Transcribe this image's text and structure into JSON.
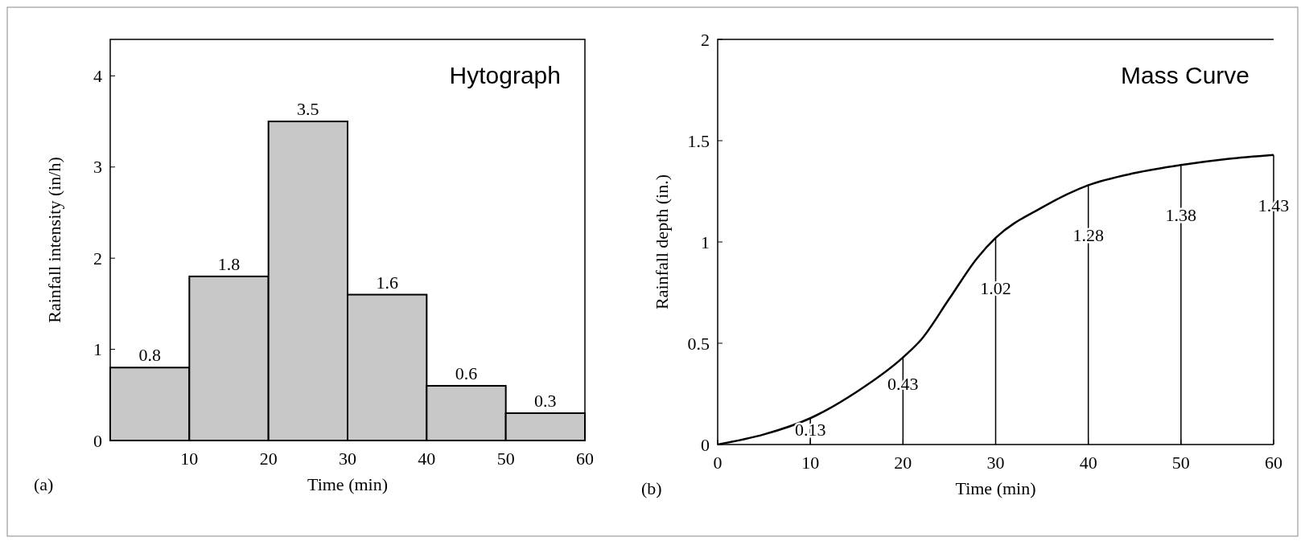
{
  "chart_data": [
    {
      "type": "histogram",
      "bins": [
        0,
        10,
        20,
        30,
        40,
        50,
        60
      ],
      "values": [
        0.8,
        1.8,
        3.5,
        1.6,
        0.6,
        0.3
      ],
      "color": "#c8c8c8",
      "xlim": [
        0,
        60
      ],
      "xticks": [
        10,
        20,
        30,
        40,
        50,
        60
      ],
      "ylim": [
        0,
        4.4
      ],
      "yticks": [
        0,
        1,
        2,
        3,
        4
      ],
      "xlabel": "Time (min)",
      "ylabel": "Rainfall intensity (in/h)",
      "data_labels": true,
      "grid": false,
      "annotations": [
        "Hytograph",
        "(a)"
      ]
    },
    {
      "type": "line",
      "xlim": [
        0,
        60
      ],
      "xticks": [
        0,
        10,
        20,
        30,
        40,
        50,
        60
      ],
      "ylim": [
        0,
        2
      ],
      "yticks": [
        0,
        0.5,
        1,
        1.5,
        2
      ],
      "xlabel": "Time (min)",
      "ylabel": "Rainfall depth (in.)",
      "grid": false,
      "marker": "none",
      "annotations": [
        "Mass Curve",
        "(b)"
      ],
      "series": [
        {
          "type": "line",
          "color": "#000000",
          "x": [
            0,
            5,
            10,
            15,
            20,
            22,
            25,
            28,
            30,
            35,
            40,
            45,
            50,
            55,
            60
          ],
          "values": [
            0,
            0.05,
            0.13,
            0.26,
            0.43,
            0.52,
            0.72,
            0.92,
            1.02,
            1.17,
            1.28,
            1.34,
            1.38,
            1.41,
            1.43
          ]
        },
        {
          "type": "bar",
          "color": "#000000",
          "x": [
            10,
            20,
            30,
            40,
            50,
            60
          ],
          "values": [
            0.13,
            0.43,
            1.02,
            1.28,
            1.38,
            1.43
          ],
          "value_labels": [
            "0.13",
            "0.43",
            "1.02",
            "1.28",
            "1.38",
            "1.43"
          ]
        }
      ]
    }
  ]
}
